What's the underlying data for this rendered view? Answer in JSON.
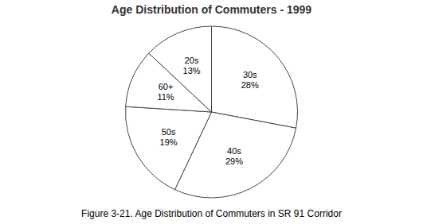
{
  "chart_data": {
    "type": "pie",
    "title": "Age Distribution of Commuters - 1999",
    "caption": "Figure 3-21. Age Distribution of Commuters in SR 91 Corridor",
    "categories": [
      "30s",
      "40s",
      "50s",
      "60+",
      "20s"
    ],
    "values": [
      28,
      29,
      19,
      11,
      13
    ],
    "value_labels": [
      "28%",
      "29%",
      "19%",
      "11%",
      "13%"
    ],
    "colors": [
      "#ffffff",
      "#ffffff",
      "#ffffff",
      "#ffffff",
      "#ffffff"
    ],
    "data_labels": true
  }
}
